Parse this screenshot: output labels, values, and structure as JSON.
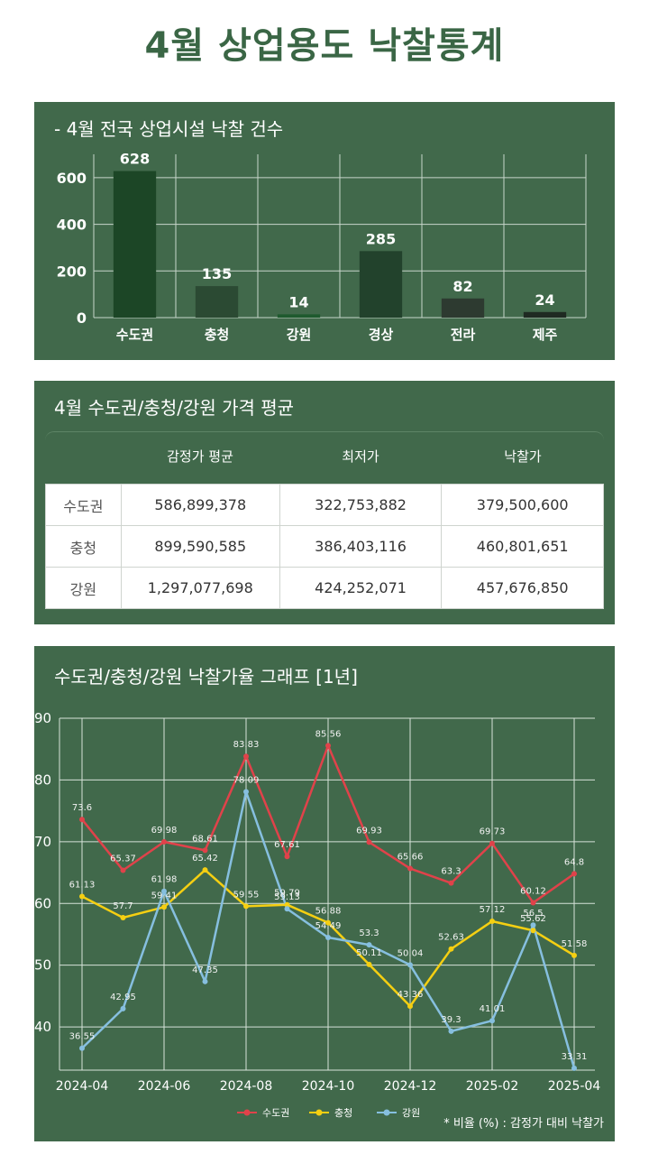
{
  "page": {
    "title": "4월 상업용도 낙찰통계"
  },
  "bar_section": {
    "title": "- 4월 전국 상업시설 낙찰 건수"
  },
  "table_section": {
    "title": "4월 수도권/충청/강원 가격 평균",
    "headers": [
      "감정가 평균",
      "최저가",
      "낙찰가"
    ],
    "rows": [
      {
        "region": "수도권",
        "values": [
          "586,899,378",
          "322,753,882",
          "379,500,600"
        ]
      },
      {
        "region": "충청",
        "values": [
          "899,590,585",
          "386,403,116",
          "460,801,651"
        ]
      },
      {
        "region": "강원",
        "values": [
          "1,297,077,698",
          "424,252,071",
          "457,676,850"
        ]
      }
    ]
  },
  "line_section": {
    "title": "수도권/충청/강원 낙찰가율 그래프 [1년]",
    "note": "* 비율 (%) : 감정가 대비 낙찰가"
  },
  "chart_data": [
    {
      "type": "bar",
      "title": "- 4월 전국 상업시설 낙찰 건수",
      "categories": [
        "수도권",
        "충청",
        "강원",
        "경상",
        "전라",
        "제주"
      ],
      "values": [
        628,
        135,
        14,
        285,
        82,
        24
      ],
      "ylim": [
        0,
        700
      ],
      "yticks": [
        0,
        200,
        400,
        600
      ],
      "bar_colors": [
        "#1c4626",
        "#2b4a33",
        "#1e5a2e",
        "#22422c",
        "#2d3a30",
        "#1f2a22"
      ],
      "grid": true
    },
    {
      "type": "line",
      "title": "수도권/충청/강원 낙찰가율 그래프 [1년]",
      "x": [
        "2024-04",
        "2024-05",
        "2024-06",
        "2024-07",
        "2024-08",
        "2024-09",
        "2024-10",
        "2024-11",
        "2024-12",
        "2025-01",
        "2025-02",
        "2025-03",
        "2025-04"
      ],
      "xticks": [
        "2024-04",
        "2024-06",
        "2024-08",
        "2024-10",
        "2024-12",
        "2025-02",
        "2025-04"
      ],
      "ylim": [
        33,
        90
      ],
      "yticks": [
        40,
        50,
        60,
        70,
        80,
        90
      ],
      "grid": true,
      "legend": "bottom",
      "series": [
        {
          "name": "수도권",
          "color": "#e0424a",
          "values": [
            73.6,
            65.37,
            69.98,
            68.61,
            83.83,
            67.61,
            85.56,
            69.93,
            65.66,
            63.3,
            69.73,
            60.12,
            64.8
          ]
        },
        {
          "name": "충청",
          "color": "#f5cf12",
          "values": [
            61.13,
            57.7,
            59.41,
            65.42,
            59.55,
            59.79,
            56.88,
            50.11,
            43.36,
            52.63,
            57.12,
            55.62,
            51.58
          ]
        },
        {
          "name": "강원",
          "color": "#86bfdf",
          "values": [
            36.55,
            42.95,
            61.98,
            47.35,
            78.09,
            59.13,
            54.49,
            53.3,
            50.04,
            39.3,
            41.01,
            56.5,
            33.31
          ]
        }
      ]
    }
  ]
}
